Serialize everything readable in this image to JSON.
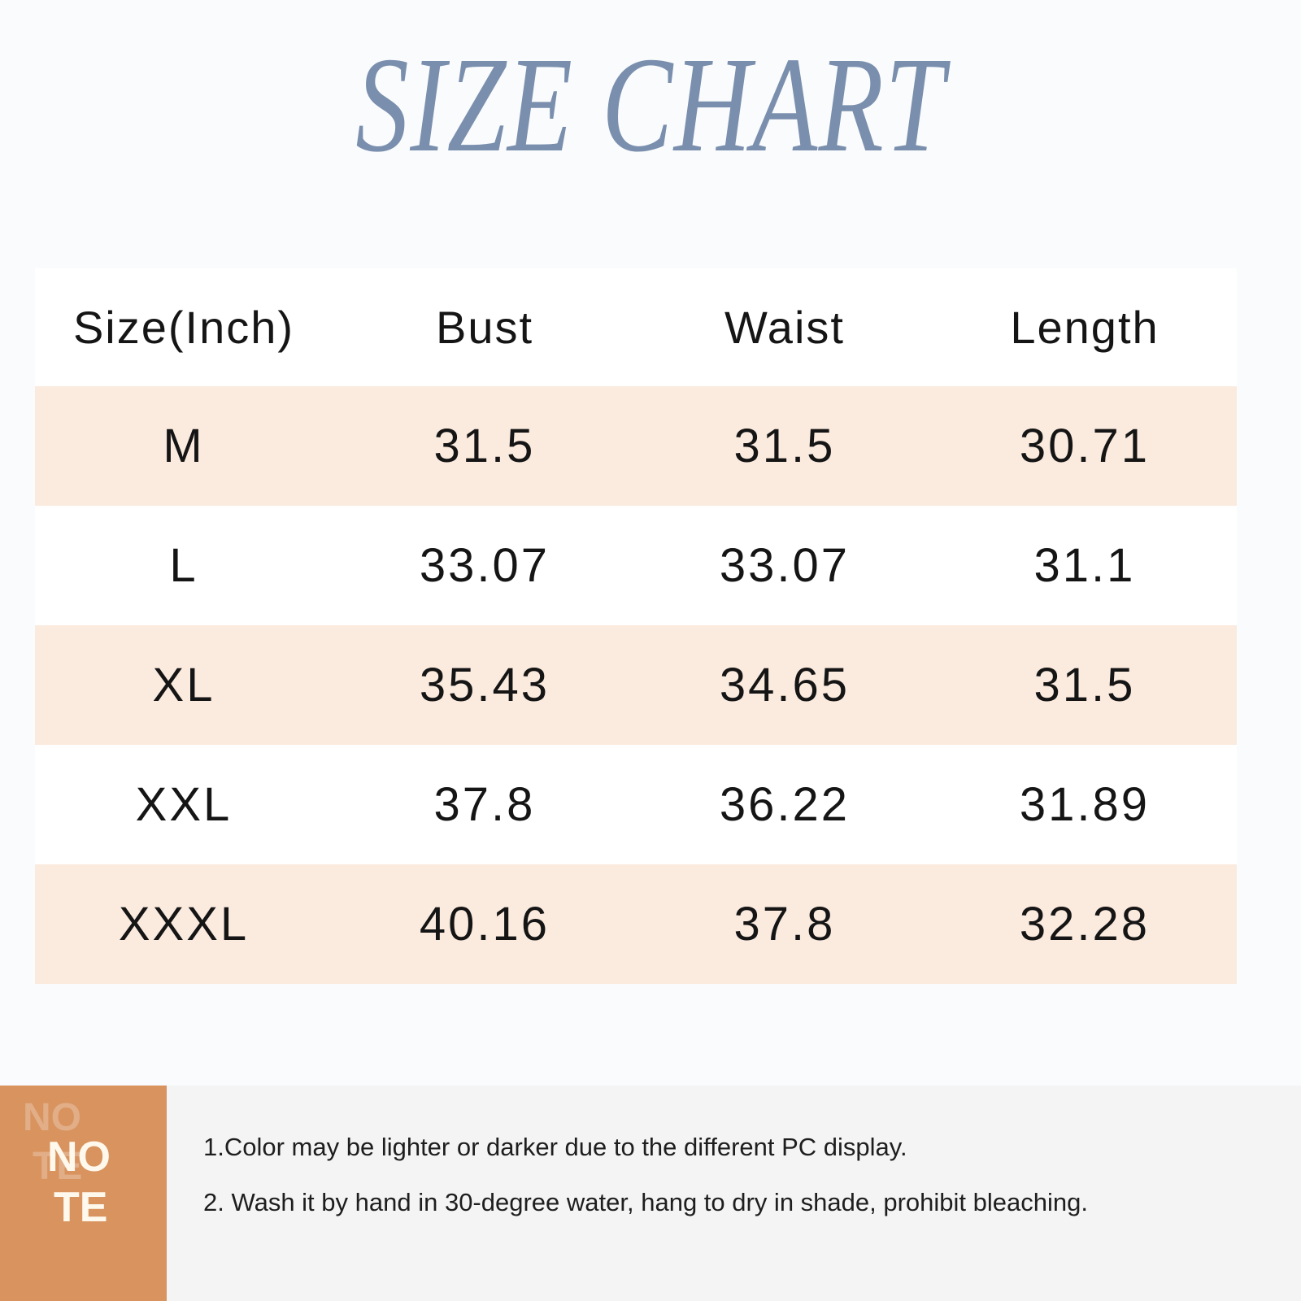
{
  "title": "SIZE CHART",
  "table": {
    "headers": [
      "Size(Inch)",
      "Bust",
      "Waist",
      "Length"
    ],
    "rows": [
      [
        "M",
        "31.5",
        "31.5",
        "30.71"
      ],
      [
        "L",
        "33.07",
        "33.07",
        "31.1"
      ],
      [
        "XL",
        "35.43",
        "34.65",
        "31.5"
      ],
      [
        "XXL",
        "37.8",
        "36.22",
        "31.89"
      ],
      [
        "XXXL",
        "40.16",
        "37.8",
        "32.28"
      ]
    ]
  },
  "note": {
    "badge_ghost_top": "NO",
    "badge_ghost_bottom": "TE",
    "badge_top": "NO",
    "badge_bottom": "TE",
    "lines": [
      "1.Color may be lighter or darker due to the different PC display.",
      "2. Wash it by hand in 30-degree water, hang to dry in shade, prohibit bleaching."
    ]
  },
  "colors": {
    "title": "#7a8fad",
    "row_shade": "#fbeade",
    "note_badge": "#d8935f"
  }
}
